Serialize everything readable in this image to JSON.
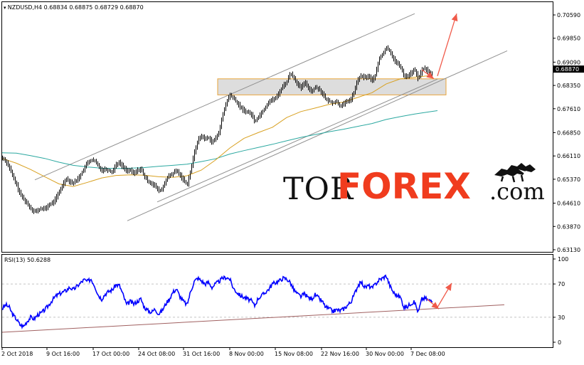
{
  "chart_data": [
    {
      "type": "candlestick",
      "title": "NZDUSD,H4",
      "header": {
        "symbol": "NZDUSD,H4",
        "open": "0.68834",
        "high": "0.68875",
        "low": "0.68729",
        "close": "0.68870"
      },
      "current_price": 0.6887,
      "current_price_label": "0.68870",
      "y_ticks": [
        0.7059,
        0.6985,
        0.6909,
        0.6835,
        0.6761,
        0.6685,
        0.6611,
        0.6537,
        0.6461,
        0.6387,
        0.6313
      ],
      "y_tick_labels": [
        "0.70590",
        "0.69850",
        "0.69090",
        "0.68350",
        "0.67610",
        "0.66850",
        "0.66110",
        "0.65370",
        "0.64610",
        "0.63870",
        "0.63130"
      ],
      "ylim": [
        0.6313,
        0.7098
      ],
      "x_tick_labels": [
        "2 Oct 2018",
        "9 Oct 16:00",
        "17 Oct 00:00",
        "24 Oct 08:00",
        "31 Oct 16:00",
        "8 Nov 00:00",
        "15 Nov 08:00",
        "22 Nov 16:00",
        "30 Nov 00:00",
        "7 Dec 08:00"
      ],
      "price_path": [
        [
          0,
          0.6605
        ],
        [
          5,
          0.6595
        ],
        [
          10,
          0.6575
        ],
        [
          15,
          0.6545
        ],
        [
          20,
          0.652
        ],
        [
          25,
          0.649
        ],
        [
          30,
          0.6475
        ],
        [
          35,
          0.646
        ],
        [
          40,
          0.6445
        ],
        [
          45,
          0.6435
        ],
        [
          50,
          0.6437
        ],
        [
          55,
          0.6445
        ],
        [
          60,
          0.6442
        ],
        [
          65,
          0.6455
        ],
        [
          70,
          0.646
        ],
        [
          75,
          0.6475
        ],
        [
          80,
          0.6495
        ],
        [
          85,
          0.652
        ],
        [
          90,
          0.654
        ],
        [
          95,
          0.653
        ],
        [
          100,
          0.6525
        ],
        [
          105,
          0.6535
        ],
        [
          110,
          0.655
        ],
        [
          115,
          0.657
        ],
        [
          120,
          0.659
        ],
        [
          125,
          0.6598
        ],
        [
          130,
          0.6595
        ],
        [
          135,
          0.658
        ],
        [
          140,
          0.6565
        ],
        [
          145,
          0.657
        ],
        [
          150,
          0.6565
        ],
        [
          155,
          0.656
        ],
        [
          160,
          0.6585
        ],
        [
          165,
          0.659
        ],
        [
          170,
          0.6575
        ],
        [
          175,
          0.6565
        ],
        [
          180,
          0.6565
        ],
        [
          185,
          0.6555
        ],
        [
          190,
          0.6565
        ],
        [
          195,
          0.657
        ],
        [
          200,
          0.6545
        ],
        [
          205,
          0.653
        ],
        [
          210,
          0.6525
        ],
        [
          215,
          0.6515
        ],
        [
          220,
          0.65
        ],
        [
          225,
          0.6505
        ],
        [
          230,
          0.6535
        ],
        [
          235,
          0.6548
        ],
        [
          240,
          0.6555
        ],
        [
          245,
          0.6565
        ],
        [
          250,
          0.655
        ],
        [
          255,
          0.6535
        ],
        [
          260,
          0.652
        ],
        [
          265,
          0.6565
        ],
        [
          270,
          0.662
        ],
        [
          275,
          0.666
        ],
        [
          280,
          0.6675
        ],
        [
          285,
          0.6665
        ],
        [
          290,
          0.667
        ],
        [
          295,
          0.6655
        ],
        [
          300,
          0.6665
        ],
        [
          305,
          0.669
        ],
        [
          310,
          0.674
        ],
        [
          315,
          0.678
        ],
        [
          320,
          0.6805
        ],
        [
          325,
          0.6795
        ],
        [
          330,
          0.678
        ],
        [
          335,
          0.6765
        ],
        [
          340,
          0.6755
        ],
        [
          345,
          0.675
        ],
        [
          350,
          0.6745
        ],
        [
          355,
          0.672
        ],
        [
          360,
          0.6735
        ],
        [
          365,
          0.675
        ],
        [
          370,
          0.6765
        ],
        [
          375,
          0.6785
        ],
        [
          380,
          0.679
        ],
        [
          385,
          0.6795
        ],
        [
          390,
          0.6815
        ],
        [
          395,
          0.6835
        ],
        [
          400,
          0.6845
        ],
        [
          405,
          0.6875
        ],
        [
          410,
          0.686
        ],
        [
          415,
          0.684
        ],
        [
          420,
          0.6825
        ],
        [
          425,
          0.6845
        ],
        [
          430,
          0.683
        ],
        [
          435,
          0.6815
        ],
        [
          440,
          0.683
        ],
        [
          445,
          0.6825
        ],
        [
          450,
          0.681
        ],
        [
          455,
          0.679
        ],
        [
          460,
          0.6785
        ],
        [
          465,
          0.678
        ],
        [
          470,
          0.6785
        ],
        [
          475,
          0.677
        ],
        [
          480,
          0.6775
        ],
        [
          485,
          0.6785
        ],
        [
          490,
          0.679
        ],
        [
          495,
          0.6815
        ],
        [
          500,
          0.6855
        ],
        [
          505,
          0.6865
        ],
        [
          510,
          0.686
        ],
        [
          515,
          0.6865
        ],
        [
          520,
          0.685
        ],
        [
          525,
          0.687
        ],
        [
          530,
          0.692
        ],
        [
          535,
          0.6935
        ],
        [
          540,
          0.6955
        ],
        [
          545,
          0.6945
        ],
        [
          550,
          0.692
        ],
        [
          555,
          0.6905
        ],
        [
          560,
          0.6895
        ],
        [
          565,
          0.6865
        ],
        [
          570,
          0.6865
        ],
        [
          575,
          0.6875
        ],
        [
          580,
          0.6885
        ],
        [
          585,
          0.6855
        ],
        [
          590,
          0.6885
        ],
        [
          595,
          0.689
        ],
        [
          600,
          0.6875
        ],
        [
          605,
          0.6867
        ]
      ],
      "ma_slow": [
        [
          0,
          0.6621
        ],
        [
          20,
          0.662
        ],
        [
          40,
          0.6612
        ],
        [
          60,
          0.6603
        ],
        [
          80,
          0.6591
        ],
        [
          100,
          0.6581
        ],
        [
          120,
          0.6576
        ],
        [
          140,
          0.6572
        ],
        [
          160,
          0.6571
        ],
        [
          180,
          0.6572
        ],
        [
          200,
          0.6574
        ],
        [
          220,
          0.6578
        ],
        [
          240,
          0.6581
        ],
        [
          260,
          0.6585
        ],
        [
          280,
          0.6593
        ],
        [
          300,
          0.6602
        ],
        [
          320,
          0.6617
        ],
        [
          340,
          0.6628
        ],
        [
          360,
          0.6638
        ],
        [
          380,
          0.6648
        ],
        [
          400,
          0.6659
        ],
        [
          420,
          0.667
        ],
        [
          440,
          0.6679
        ],
        [
          460,
          0.6688
        ],
        [
          480,
          0.6696
        ],
        [
          500,
          0.6705
        ],
        [
          520,
          0.6714
        ],
        [
          540,
          0.6727
        ],
        [
          560,
          0.6736
        ],
        [
          580,
          0.6744
        ],
        [
          600,
          0.6751
        ],
        [
          612,
          0.6755
        ]
      ],
      "ma_fast": [
        [
          0,
          0.6603
        ],
        [
          20,
          0.6588
        ],
        [
          40,
          0.6568
        ],
        [
          60,
          0.6545
        ],
        [
          80,
          0.6522
        ],
        [
          100,
          0.6514
        ],
        [
          120,
          0.6527
        ],
        [
          140,
          0.6541
        ],
        [
          160,
          0.6549
        ],
        [
          180,
          0.6551
        ],
        [
          200,
          0.655
        ],
        [
          220,
          0.6545
        ],
        [
          240,
          0.6543
        ],
        [
          260,
          0.6548
        ],
        [
          280,
          0.6566
        ],
        [
          300,
          0.6598
        ],
        [
          320,
          0.6636
        ],
        [
          340,
          0.6667
        ],
        [
          360,
          0.6685
        ],
        [
          380,
          0.6702
        ],
        [
          400,
          0.6733
        ],
        [
          420,
          0.6752
        ],
        [
          440,
          0.6763
        ],
        [
          460,
          0.6775
        ],
        [
          480,
          0.6782
        ],
        [
          500,
          0.6797
        ],
        [
          520,
          0.6812
        ],
        [
          540,
          0.684
        ],
        [
          560,
          0.6856
        ],
        [
          580,
          0.6861
        ],
        [
          600,
          0.6866
        ]
      ],
      "channel_upper": [
        [
          46,
          0.6535
        ],
        [
          580,
          0.7063
        ]
      ],
      "channel_lower": [
        [
          176,
          0.6405
        ],
        [
          710,
          0.6945
        ]
      ],
      "mid_line": [
        [
          218,
          0.6465
        ],
        [
          612,
          0.6855
        ]
      ],
      "resistance_zone": {
        "x": [
          303,
          624
        ],
        "y": [
          0.6805,
          0.6856
        ]
      },
      "arrows": [
        {
          "from": [
            612,
            0.6865
          ],
          "to": [
            639,
            0.7063
          ]
        },
        {
          "from": [
            590,
            0.6885
          ],
          "to": [
            607,
            0.6856
          ]
        }
      ]
    },
    {
      "type": "line",
      "title": "RSI(13) 50.6288",
      "header": {
        "name": "RSI(13)",
        "value": "50.6288"
      },
      "ylim": [
        0,
        100
      ],
      "y_ticks": [
        100,
        70,
        30,
        0
      ],
      "y_tick_labels": [
        "100",
        "70",
        "30",
        "0"
      ],
      "rsi_path": [
        [
          0,
          40
        ],
        [
          5,
          45
        ],
        [
          10,
          42
        ],
        [
          15,
          33
        ],
        [
          20,
          28
        ],
        [
          25,
          21
        ],
        [
          30,
          19
        ],
        [
          35,
          25
        ],
        [
          40,
          30
        ],
        [
          45,
          28
        ],
        [
          50,
          33
        ],
        [
          55,
          35
        ],
        [
          60,
          39
        ],
        [
          65,
          44
        ],
        [
          70,
          50
        ],
        [
          75,
          55
        ],
        [
          80,
          58
        ],
        [
          85,
          60
        ],
        [
          90,
          62
        ],
        [
          95,
          66
        ],
        [
          100,
          63
        ],
        [
          105,
          67
        ],
        [
          110,
          71
        ],
        [
          115,
          75
        ],
        [
          120,
          73
        ],
        [
          125,
          76
        ],
        [
          130,
          68
        ],
        [
          135,
          57
        ],
        [
          140,
          52
        ],
        [
          145,
          58
        ],
        [
          150,
          61
        ],
        [
          155,
          63
        ],
        [
          160,
          69
        ],
        [
          165,
          68
        ],
        [
          170,
          57
        ],
        [
          175,
          45
        ],
        [
          180,
          49
        ],
        [
          185,
          46
        ],
        [
          190,
          49
        ],
        [
          195,
          52
        ],
        [
          200,
          42
        ],
        [
          205,
          38
        ],
        [
          210,
          36
        ],
        [
          215,
          40
        ],
        [
          220,
          34
        ],
        [
          225,
          38
        ],
        [
          230,
          46
        ],
        [
          235,
          52
        ],
        [
          240,
          60
        ],
        [
          245,
          64
        ],
        [
          250,
          55
        ],
        [
          255,
          49
        ],
        [
          260,
          45
        ],
        [
          265,
          61
        ],
        [
          270,
          73
        ],
        [
          275,
          77
        ],
        [
          280,
          74
        ],
        [
          285,
          70
        ],
        [
          290,
          72
        ],
        [
          295,
          66
        ],
        [
          300,
          70
        ],
        [
          305,
          73
        ],
        [
          310,
          77
        ],
        [
          315,
          78
        ],
        [
          320,
          76
        ],
        [
          325,
          65
        ],
        [
          330,
          60
        ],
        [
          335,
          56
        ],
        [
          340,
          54
        ],
        [
          345,
          52
        ],
        [
          350,
          50
        ],
        [
          355,
          44
        ],
        [
          360,
          53
        ],
        [
          365,
          56
        ],
        [
          370,
          60
        ],
        [
          375,
          64
        ],
        [
          380,
          70
        ],
        [
          385,
          72
        ],
        [
          390,
          74
        ],
        [
          395,
          77
        ],
        [
          400,
          76
        ],
        [
          405,
          72
        ],
        [
          410,
          63
        ],
        [
          415,
          58
        ],
        [
          420,
          55
        ],
        [
          425,
          58
        ],
        [
          430,
          54
        ],
        [
          435,
          52
        ],
        [
          440,
          57
        ],
        [
          445,
          53
        ],
        [
          450,
          49
        ],
        [
          455,
          42
        ],
        [
          460,
          40
        ],
        [
          465,
          37
        ],
        [
          470,
          39
        ],
        [
          475,
          38
        ],
        [
          480,
          40
        ],
        [
          485,
          44
        ],
        [
          490,
          48
        ],
        [
          495,
          57
        ],
        [
          500,
          68
        ],
        [
          505,
          72
        ],
        [
          510,
          66
        ],
        [
          515,
          68
        ],
        [
          520,
          65
        ],
        [
          525,
          70
        ],
        [
          530,
          75
        ],
        [
          535,
          77
        ],
        [
          540,
          80
        ],
        [
          545,
          68
        ],
        [
          550,
          60
        ],
        [
          555,
          56
        ],
        [
          560,
          54
        ],
        [
          565,
          42
        ],
        [
          570,
          43
        ],
        [
          575,
          47
        ],
        [
          580,
          48
        ],
        [
          585,
          36
        ],
        [
          590,
          52
        ],
        [
          595,
          53
        ],
        [
          600,
          50
        ],
        [
          605,
          51
        ]
      ],
      "trendline": [
        [
          0,
          12
        ],
        [
          706,
          45
        ]
      ],
      "arrows": [
        {
          "from": [
            612,
            42
          ],
          "to": [
            632,
            71
          ]
        },
        {
          "from": [
            597,
            52
          ],
          "to": [
            614,
            40
          ]
        }
      ]
    }
  ],
  "watermark": {
    "part1": "TOR",
    "part2": "FOREX",
    "part3": ".com"
  },
  "colors": {
    "candle": "#000000",
    "ma_slow": "#2ba8a0",
    "ma_fast": "#d8a020",
    "channel": "#909090",
    "arrow": "#f05a4a",
    "rsi": "#0000ff",
    "rsi_trend": "#a06060",
    "zone_fill": "#d7d7d7",
    "zone_border": "#e8a43a",
    "brand": "#f03c1e"
  }
}
